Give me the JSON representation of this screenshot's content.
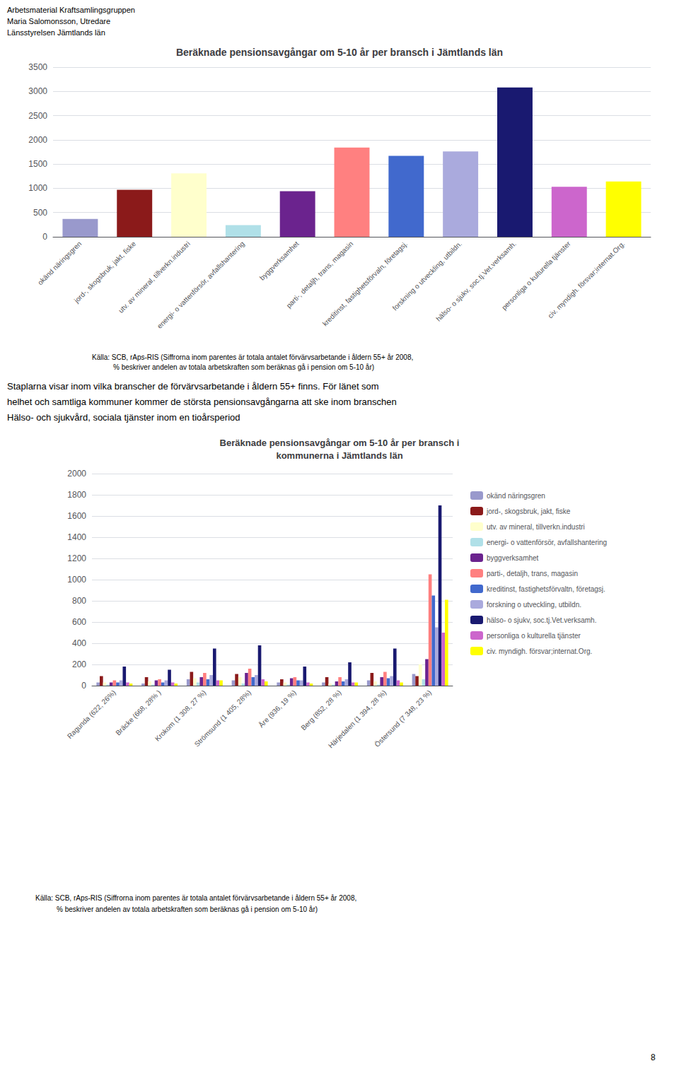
{
  "chart_data": [
    {
      "type": "bar",
      "title": "Beräknade pensionsavgångar om 5-10 år per bransch i Jämtlands län",
      "categories": [
        "okänd näringsgren",
        "jord-, skogsbruk, jakt, fiske",
        "utv. av mineral, tillverkn.industri",
        "energi- o vattenförsör, avfallshantering",
        "byggverksamhet",
        "parti-, detaljh, trans, magasin",
        "kreditinst, fastighetsförvaln, företagsj.",
        "forskning o utveckling, utbildn.",
        "hälso- o sjukv, soc.tj.Vet.verksamh.",
        "personliga o kulturella tjänster",
        "civ. myndigh. försvar;internat.Org."
      ],
      "values": [
        370,
        970,
        1310,
        240,
        940,
        1840,
        1670,
        1760,
        3080,
        1030,
        1140
      ],
      "colors": [
        "#9999CC",
        "#8B1A1A",
        "#FFFFCC",
        "#B0E0E8",
        "#6B238E",
        "#FF8080",
        "#4169CD",
        "#AAAADD",
        "#191970",
        "#CC66CC",
        "#FFFF00"
      ],
      "ylim": [
        0,
        3500
      ],
      "yticks": [
        0,
        500,
        1000,
        1500,
        2000,
        2500,
        3000,
        3500
      ],
      "grid": true,
      "annotations": [
        "Arbetsmaterial Kraftsamlingsgruppen",
        "Maria Salomonsson, Utredare",
        "Länsstyrelsen Jämtlands län",
        "Källa: SCB, rAps-RIS (Siffrorna inom parentes är totala antalet förvärvsarbetande i åldern 55+ år 2008,",
        "% beskriver andelen av totala arbetskraften som beräknas gå i pension om 5-10 år)",
        "Staplarna visar inom vilka branscher de förvärvsarbetande i åldern 55+ finns. För länet som",
        "helhet och samtliga kommuner kommer de största pensionsavgångarna att ske inom branschen",
        "Hälso- och sjukvård, sociala tjänster inom en tioårsperiod"
      ]
    },
    {
      "type": "bar",
      "title": "Beräknade pensionsavgångar om 5-10 år per bransch i\nkommunerna i Jämtlands län",
      "categories": [
        "Ragunda (622, 26%)",
        "Bräcke (668, 28% )",
        "Krokom (1 308, 27 %)",
        "Strömsund (1 405, 28%)",
        "Åre (936, 19 %)",
        "Berg (852, 28 %)",
        "Härjedalen (1 394, 28 %)",
        "Östersund (7 348, 23 %)"
      ],
      "series": [
        {
          "name": "okänd näringsgren",
          "color": "#9999CC",
          "values": [
            30,
            20,
            60,
            50,
            30,
            30,
            50,
            110
          ]
        },
        {
          "name": "jord-, skogsbruk, jakt, fiske",
          "color": "#8B1A1A",
          "values": [
            90,
            80,
            130,
            110,
            60,
            80,
            120,
            90
          ]
        },
        {
          "name": "utv. av mineral, tillverkn.industri",
          "color": "#FFFFCC",
          "values": [
            30,
            40,
            70,
            80,
            30,
            20,
            40,
            200
          ]
        },
        {
          "name": "energi- o vattenförsör, avfallshantering",
          "color": "#B0E0E8",
          "values": [
            10,
            10,
            30,
            20,
            10,
            10,
            10,
            60
          ]
        },
        {
          "name": "byggverksamhet",
          "color": "#6B238E",
          "values": [
            30,
            50,
            80,
            120,
            70,
            40,
            80,
            250
          ]
        },
        {
          "name": "parti-, detaljh, trans, magasin",
          "color": "#FF8080",
          "values": [
            50,
            60,
            120,
            160,
            80,
            80,
            130,
            1050
          ]
        },
        {
          "name": "kreditinst, fastighetsförvaltn, företagsj.",
          "color": "#4169CD",
          "values": [
            30,
            30,
            60,
            80,
            50,
            40,
            70,
            850
          ]
        },
        {
          "name": "forskning o utveckling, utbildn.",
          "color": "#AAAADD",
          "values": [
            50,
            50,
            100,
            100,
            50,
            60,
            90,
            550
          ]
        },
        {
          "name": "hälso- o sjukv, soc.tj.Vet.verksamh.",
          "color": "#191970",
          "values": [
            180,
            150,
            350,
            380,
            180,
            220,
            350,
            1700
          ]
        },
        {
          "name": "personliga o kulturella tjänster",
          "color": "#CC66CC",
          "values": [
            30,
            30,
            50,
            60,
            30,
            30,
            50,
            500
          ]
        },
        {
          "name": "civ. myndigh. försvar;internat.Org.",
          "color": "#FFFF00",
          "values": [
            20,
            20,
            50,
            40,
            20,
            30,
            30,
            810
          ]
        }
      ],
      "ylim": [
        0,
        2000
      ],
      "yticks": [
        0,
        200,
        400,
        600,
        800,
        1000,
        1200,
        1400,
        1600,
        1800,
        2000
      ],
      "grid": true,
      "legend": "right",
      "annotations": [
        "Källa: SCB, rAps-RIS (Siffrorna inom parentes är totala antalet förvärvsarbetande i åldern 55+ år 2008,",
        "% beskriver andelen av totala arbetskraften som beräknas gå i pension om 5-10 år)",
        "8"
      ]
    }
  ]
}
